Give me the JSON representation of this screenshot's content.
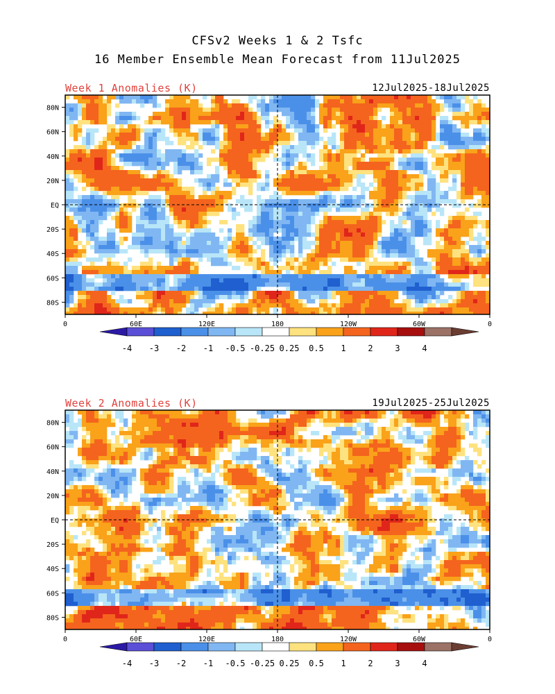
{
  "title_line1": "CFSv2 Weeks 1 & 2 Tsfc",
  "title_line2": "16 Member Ensemble Mean Forecast from 11Jul2025",
  "panels": [
    {
      "label": "Week 1 Anomalies (K)",
      "dates": "12Jul2025-18Jul2025"
    },
    {
      "label": "Week 2 Anomalies (K)",
      "dates": "19Jul2025-25Jul2025"
    }
  ],
  "lat_ticks": [
    "80N",
    "60N",
    "40N",
    "20N",
    "EQ",
    "20S",
    "40S",
    "60S",
    "80S"
  ],
  "lat_values": [
    80,
    60,
    40,
    20,
    0,
    -20,
    -40,
    -60,
    -80
  ],
  "lon_ticks": [
    "0",
    "60E",
    "120E",
    "180",
    "120W",
    "60W",
    "0"
  ],
  "lon_values": [
    0,
    60,
    120,
    180,
    240,
    300,
    360
  ],
  "colorbar": {
    "labels": [
      "-4",
      "-3",
      "-2",
      "-1",
      "-0.5",
      "-0.25",
      "0.25",
      "0.5",
      "1",
      "2",
      "3",
      "4"
    ],
    "colors": [
      "#2c1aa6",
      "#5a4fd6",
      "#1f5fcf",
      "#4b90e8",
      "#80b7f2",
      "#b8e6f8",
      "#ffffff",
      "#fee27f",
      "#f9a21a",
      "#f4641e",
      "#e0261a",
      "#a70f0f",
      "#9c7266",
      "#6b3d32"
    ]
  },
  "palette": {
    "title_red": "#e0413c",
    "land_brown": "#6b3d32"
  }
}
